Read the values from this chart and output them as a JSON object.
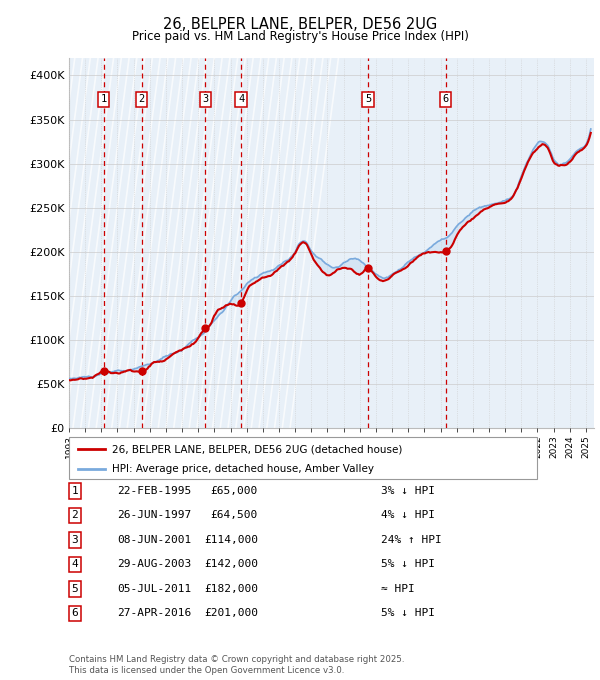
{
  "title": "26, BELPER LANE, BELPER, DE56 2UG",
  "subtitle": "Price paid vs. HM Land Registry's House Price Index (HPI)",
  "ylim": [
    0,
    420000
  ],
  "yticks": [
    0,
    50000,
    100000,
    150000,
    200000,
    250000,
    300000,
    350000,
    400000
  ],
  "ytick_labels": [
    "£0",
    "£50K",
    "£100K",
    "£150K",
    "£200K",
    "£250K",
    "£300K",
    "£350K",
    "£400K"
  ],
  "xlim_start": 1993.0,
  "xlim_end": 2025.5,
  "sale_dates": [
    1995.14,
    1997.49,
    2001.44,
    2003.66,
    2011.51,
    2016.32
  ],
  "sale_prices": [
    65000,
    64500,
    114000,
    142000,
    182000,
    201000
  ],
  "sale_labels": [
    "1",
    "2",
    "3",
    "4",
    "5",
    "6"
  ],
  "sale_label_info": [
    {
      "num": "1",
      "date": "22-FEB-1995",
      "price": "£65,000",
      "hpi": "3% ↓ HPI"
    },
    {
      "num": "2",
      "date": "26-JUN-1997",
      "price": "£64,500",
      "hpi": "4% ↓ HPI"
    },
    {
      "num": "3",
      "date": "08-JUN-2001",
      "price": "£114,000",
      "hpi": "24% ↑ HPI"
    },
    {
      "num": "4",
      "date": "29-AUG-2003",
      "price": "£142,000",
      "hpi": "5% ↓ HPI"
    },
    {
      "num": "5",
      "date": "05-JUL-2011",
      "price": "£182,000",
      "hpi": "≈ HPI"
    },
    {
      "num": "6",
      "date": "27-APR-2016",
      "price": "£201,000",
      "hpi": "5% ↓ HPI"
    }
  ],
  "line_color_price": "#cc0000",
  "line_color_hpi": "#7aaadd",
  "vline_color": "#cc0000",
  "box_edge_color": "#cc0000",
  "grid_color": "#cccccc",
  "footnote": "Contains HM Land Registry data © Crown copyright and database right 2025.\nThis data is licensed under the Open Government Licence v3.0.",
  "legend_label_price": "26, BELPER LANE, BELPER, DE56 2UG (detached house)",
  "legend_label_hpi": "HPI: Average price, detached house, Amber Valley"
}
